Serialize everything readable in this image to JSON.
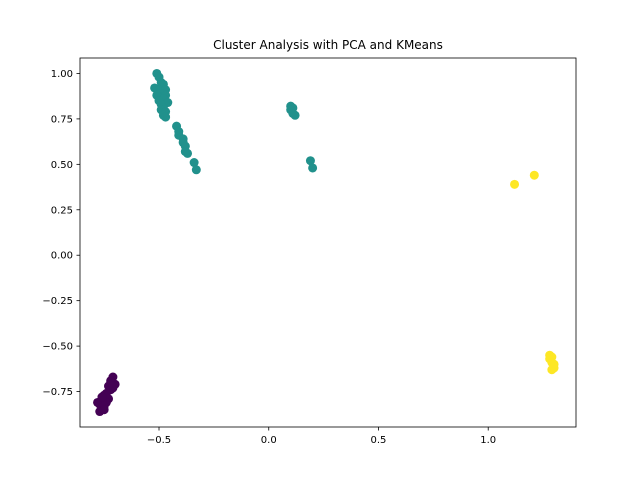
{
  "chart_data": {
    "type": "scatter",
    "title": "Cluster Analysis with PCA and KMeans",
    "xlabel": "",
    "ylabel": "",
    "xlim": [
      -0.86,
      1.4
    ],
    "ylim": [
      -0.945,
      1.085
    ],
    "xticks": [
      -0.5,
      0.0,
      0.5,
      1.0
    ],
    "xtick_labels": [
      "−0.5",
      "0.0",
      "0.5",
      "1.0"
    ],
    "yticks": [
      -0.75,
      -0.5,
      -0.25,
      0.0,
      0.25,
      0.5,
      0.75,
      1.0
    ],
    "ytick_labels": [
      "−0.75",
      "−0.50",
      "−0.25",
      "0.00",
      "0.25",
      "0.50",
      "0.75",
      "1.00"
    ],
    "grid": false,
    "legend": "none",
    "colors": {
      "cluster_0": "#440154",
      "cluster_1": "#21918c",
      "cluster_2": "#fde725"
    },
    "series": [
      {
        "cluster": 0,
        "color": "#440154",
        "points": [
          [
            -0.71,
            -0.67
          ],
          [
            -0.72,
            -0.69
          ],
          [
            -0.7,
            -0.71
          ],
          [
            -0.71,
            -0.73
          ],
          [
            -0.73,
            -0.72
          ],
          [
            -0.72,
            -0.74
          ],
          [
            -0.74,
            -0.76
          ],
          [
            -0.75,
            -0.77
          ],
          [
            -0.73,
            -0.79
          ],
          [
            -0.74,
            -0.81
          ],
          [
            -0.76,
            -0.8
          ],
          [
            -0.77,
            -0.82
          ],
          [
            -0.78,
            -0.81
          ],
          [
            -0.76,
            -0.84
          ],
          [
            -0.77,
            -0.86
          ],
          [
            -0.75,
            -0.83
          ],
          [
            -0.75,
            -0.85
          ],
          [
            -0.76,
            -0.78
          ],
          [
            -0.72,
            -0.7
          ],
          [
            -0.71,
            -0.72
          ]
        ]
      },
      {
        "cluster": 1,
        "color": "#21918c",
        "points": [
          [
            -0.51,
            1.0
          ],
          [
            -0.5,
            0.98
          ],
          [
            -0.49,
            0.95
          ],
          [
            -0.48,
            0.94
          ],
          [
            -0.52,
            0.92
          ],
          [
            -0.5,
            0.91
          ],
          [
            -0.47,
            0.91
          ],
          [
            -0.49,
            0.89
          ],
          [
            -0.51,
            0.88
          ],
          [
            -0.47,
            0.88
          ],
          [
            -0.48,
            0.86
          ],
          [
            -0.5,
            0.85
          ],
          [
            -0.46,
            0.84
          ],
          [
            -0.49,
            0.83
          ],
          [
            -0.48,
            0.81
          ],
          [
            -0.49,
            0.8
          ],
          [
            -0.47,
            0.79
          ],
          [
            -0.48,
            0.77
          ],
          [
            -0.47,
            0.76
          ],
          [
            -0.42,
            0.71
          ],
          [
            -0.41,
            0.68
          ],
          [
            -0.41,
            0.66
          ],
          [
            -0.39,
            0.64
          ],
          [
            -0.39,
            0.62
          ],
          [
            -0.38,
            0.6
          ],
          [
            -0.38,
            0.57
          ],
          [
            -0.37,
            0.56
          ],
          [
            -0.34,
            0.51
          ],
          [
            -0.33,
            0.47
          ],
          [
            0.1,
            0.82
          ],
          [
            0.11,
            0.81
          ],
          [
            0.1,
            0.8
          ],
          [
            0.12,
            0.77
          ],
          [
            0.11,
            0.78
          ],
          [
            0.19,
            0.52
          ],
          [
            0.2,
            0.48
          ]
        ]
      },
      {
        "cluster": 2,
        "color": "#fde725",
        "points": [
          [
            1.12,
            0.39
          ],
          [
            1.21,
            0.44
          ],
          [
            1.28,
            -0.55
          ],
          [
            1.29,
            -0.56
          ],
          [
            1.28,
            -0.57
          ],
          [
            1.29,
            -0.59
          ],
          [
            1.3,
            -0.62
          ],
          [
            1.29,
            -0.63
          ],
          [
            1.3,
            -0.6
          ]
        ]
      }
    ]
  }
}
